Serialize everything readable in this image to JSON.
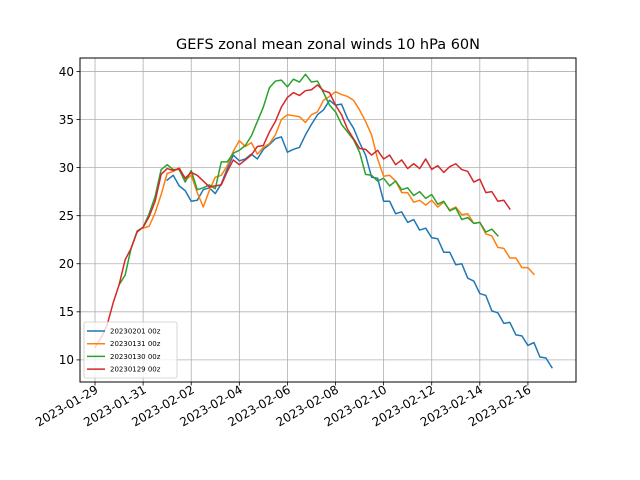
{
  "chart_data": {
    "type": "line",
    "title": "GEFS zonal mean zonal winds 10 hPa 60N",
    "xlabel": "",
    "ylabel": "",
    "x_axis": "date",
    "xlim": [
      "2023-01-28T09:00",
      "2023-02-18T00:00"
    ],
    "ylim": [
      7.7,
      41.4
    ],
    "xticks": [
      "2023-01-29",
      "2023-01-31",
      "2023-02-02",
      "2023-02-04",
      "2023-02-06",
      "2023-02-08",
      "2023-02-10",
      "2023-02-12",
      "2023-02-14",
      "2023-02-16"
    ],
    "yticks": [
      10,
      15,
      20,
      25,
      30,
      35,
      40
    ],
    "grid": true,
    "legend_position": "lower-left",
    "series": [
      {
        "name": "20230201 00z",
        "color": "#1f77b4",
        "start": "2023-02-01T00:00",
        "step_hours": 6,
        "values": [
          28.7,
          29.2,
          28.1,
          27.6,
          26.5,
          26.6,
          27.7,
          27.9,
          27.3,
          28.3,
          29.9,
          31.3,
          30.7,
          30.9,
          31.4,
          30.9,
          31.9,
          32.4,
          33.0,
          33.2,
          31.6,
          31.9,
          32.1,
          33.4,
          34.5,
          35.5,
          36.0,
          37.0,
          36.5,
          36.6,
          35.1,
          34.1,
          32.6,
          31.3,
          29.0,
          28.9,
          26.5,
          26.5,
          25.2,
          25.4,
          24.3,
          24.6,
          23.5,
          23.7,
          22.7,
          22.6,
          21.2,
          21.2,
          19.9,
          20.0,
          18.5,
          18.2,
          16.9,
          16.7,
          15.1,
          14.9,
          13.8,
          13.9,
          12.6,
          12.5,
          11.5,
          11.8,
          10.3,
          10.2,
          9.2
        ]
      },
      {
        "name": "20230131 00z",
        "color": "#ff7f0e",
        "start": "2023-01-31T00:00",
        "step_hours": 6,
        "values": [
          23.7,
          23.9,
          25.3,
          27.2,
          29.4,
          29.6,
          30.0,
          28.7,
          29.2,
          27.4,
          25.9,
          27.6,
          29.0,
          29.2,
          30.2,
          31.7,
          32.8,
          32.2,
          32.6,
          31.4,
          32.1,
          32.5,
          33.4,
          35.0,
          35.5,
          35.4,
          35.3,
          34.7,
          35.5,
          35.8,
          37.0,
          37.4,
          37.9,
          37.6,
          37.4,
          37.0,
          36.0,
          34.8,
          33.4,
          30.9,
          29.1,
          29.2,
          28.6,
          27.4,
          27.4,
          26.4,
          26.6,
          26.1,
          26.6,
          25.9,
          26.4,
          25.6,
          25.9,
          25.1,
          25.2,
          24.2,
          24.3,
          23.1,
          22.9,
          21.7,
          21.6,
          20.6,
          20.6,
          19.6,
          19.6,
          18.9
        ]
      },
      {
        "name": "20230130 00z",
        "color": "#2ca02c",
        "start": "2023-01-30T00:00",
        "step_hours": 6,
        "values": [
          17.8,
          18.8,
          21.6,
          23.4,
          23.8,
          25.2,
          27.0,
          29.8,
          30.3,
          29.8,
          29.8,
          28.5,
          29.7,
          27.7,
          27.9,
          28.2,
          27.8,
          30.6,
          30.6,
          31.5,
          31.8,
          32.3,
          33.3,
          34.8,
          36.3,
          38.3,
          39.0,
          39.1,
          38.4,
          39.2,
          38.9,
          39.7,
          38.9,
          39.0,
          37.8,
          36.5,
          35.8,
          34.5,
          33.7,
          32.9,
          31.6,
          29.3,
          29.2,
          28.6,
          28.9,
          28.1,
          28.6,
          27.7,
          27.9,
          27.1,
          27.5,
          26.8,
          27.2,
          26.2,
          26.5,
          25.5,
          25.8,
          24.6,
          24.8,
          24.2,
          24.3,
          23.3,
          23.6,
          22.9
        ]
      },
      {
        "name": "20230129 00z",
        "color": "#d62728",
        "start": "2023-01-29T00:00",
        "step_hours": 6,
        "values": [
          11.3,
          12.3,
          13.6,
          15.9,
          17.8,
          20.4,
          21.6,
          23.3,
          23.8,
          24.9,
          26.5,
          29.3,
          29.9,
          29.7,
          29.9,
          28.9,
          29.5,
          29.2,
          28.6,
          28.0,
          28.1,
          28.2,
          29.6,
          30.8,
          30.3,
          30.8,
          31.3,
          32.2,
          32.3,
          33.7,
          34.8,
          36.3,
          37.3,
          37.8,
          37.5,
          38.0,
          38.1,
          38.6,
          38.0,
          37.8,
          36.5,
          35.5,
          34.0,
          33.0,
          32.0,
          31.9,
          31.3,
          31.8,
          30.9,
          31.3,
          30.3,
          30.8,
          29.9,
          30.4,
          29.9,
          30.9,
          29.8,
          30.2,
          29.5,
          30.1,
          30.4,
          29.8,
          29.6,
          28.5,
          28.8,
          27.4,
          27.5,
          26.5,
          26.6,
          25.7
        ]
      }
    ]
  }
}
